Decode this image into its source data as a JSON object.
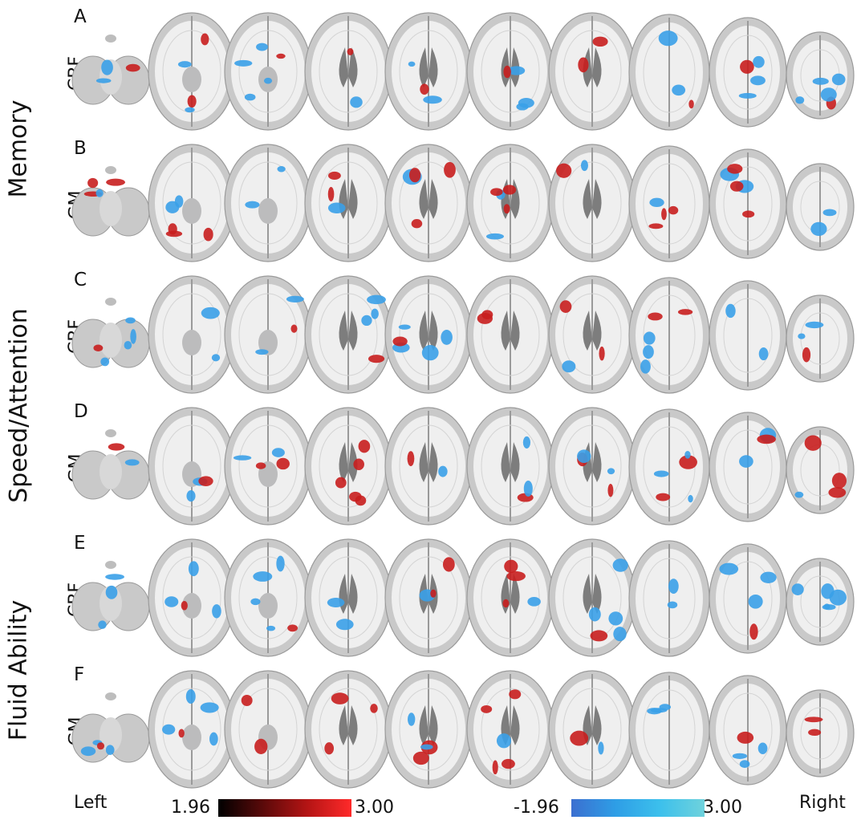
{
  "groups": [
    {
      "label": "Memory"
    },
    {
      "label": "Speed/Attention"
    },
    {
      "label": "Fluid Ability"
    }
  ],
  "rows": [
    {
      "panel": "A",
      "measure": "CBF"
    },
    {
      "panel": "B",
      "measure": "GM"
    },
    {
      "panel": "C",
      "measure": "CBF"
    },
    {
      "panel": "D",
      "measure": "GM"
    },
    {
      "panel": "E",
      "measure": "CBF"
    },
    {
      "panel": "F",
      "measure": "GM"
    }
  ],
  "slice_count": 10,
  "side_labels": {
    "left": "Left",
    "right": "Right"
  },
  "scales": {
    "positive": {
      "min": "1.96",
      "max": "3.00",
      "colors": [
        "#000000",
        "#5a0a0a",
        "#b41414",
        "#ff2a2a"
      ]
    },
    "negative": {
      "min": "-1.96",
      "max": "3.00",
      "colors": [
        "#3b6fd0",
        "#2e9ee6",
        "#3cc0ec",
        "#6fd2dc"
      ]
    }
  },
  "colors": {
    "red_blob": "#c81e1e",
    "blue_blob": "#3aa0e8",
    "brain_gray": "#c9c9c9",
    "white_matter": "#efefef"
  }
}
